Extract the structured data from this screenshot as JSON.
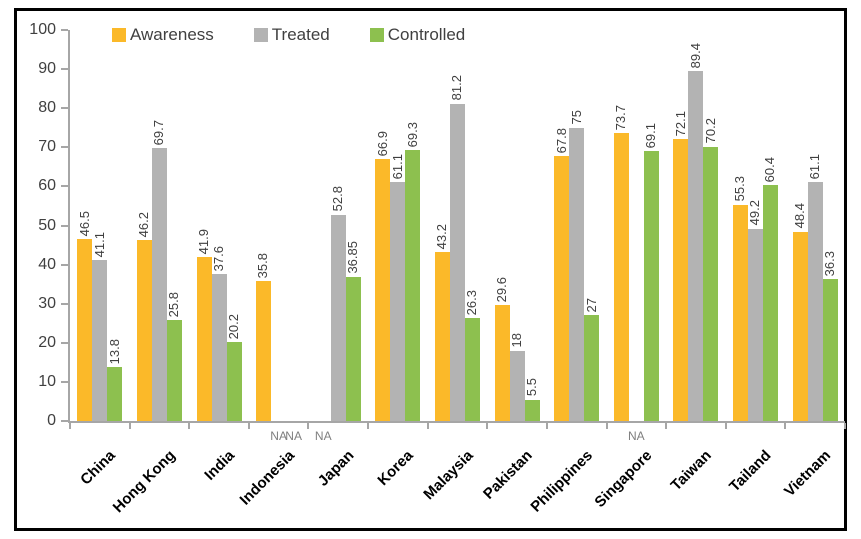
{
  "chart_data": {
    "type": "bar",
    "title": "",
    "xlabel": "",
    "ylabel": "",
    "ylim": [
      0,
      100
    ],
    "ytick_step": 10,
    "grid": false,
    "legend_position": "top",
    "missing_label": "NA",
    "categories": [
      "China",
      "Hong Kong",
      "India",
      "Indonesia",
      "Japan",
      "Korea",
      "Malaysia",
      "Pakistan",
      "Philippines",
      "Singapore",
      "Taiwan",
      "Tailand",
      "Vietnam"
    ],
    "series": [
      {
        "name": "Awareness",
        "color": "#FBB929",
        "values": [
          46.5,
          46.2,
          41.9,
          35.8,
          null,
          66.9,
          43.2,
          29.6,
          67.8,
          73.7,
          72.1,
          55.3,
          48.4
        ]
      },
      {
        "name": "Treated",
        "color": "#B3B3B3",
        "values": [
          41.1,
          69.7,
          37.6,
          null,
          52.8,
          61.1,
          81.2,
          18,
          75,
          null,
          89.4,
          49.2,
          61.1
        ]
      },
      {
        "name": "Controlled",
        "color": "#8DC04F",
        "values": [
          13.8,
          25.8,
          20.2,
          null,
          36.85,
          69.3,
          26.3,
          5.5,
          27,
          69.1,
          70.2,
          60.4,
          36.3
        ]
      }
    ]
  },
  "colors": {
    "axis": "#A6A6A6",
    "axis_tick_label": "#404040",
    "value_label": "#3F3F3F",
    "category_label": "#000000",
    "na_label": "#7F7F7F",
    "frame_border": "#000000",
    "background": "#FFFFFF"
  }
}
